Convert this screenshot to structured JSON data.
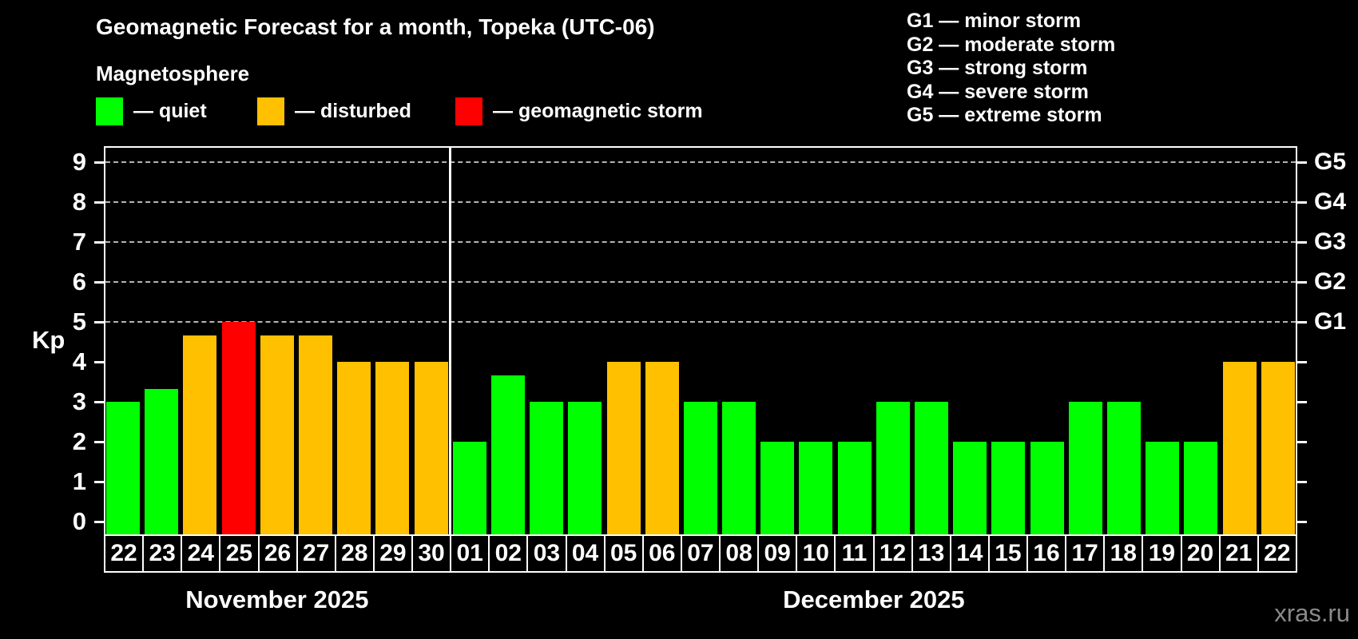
{
  "header": {
    "title": "Geomagnetic Forecast for a month, Topeka (UTC-06)",
    "subtitle": "Magnetosphere"
  },
  "legend": {
    "items": [
      {
        "name": "quiet",
        "color": "#00ff00",
        "label": "— quiet"
      },
      {
        "name": "disturbed",
        "color": "#ffc000",
        "label": "— disturbed"
      },
      {
        "name": "storm",
        "color": "#ff0000",
        "label": "— geomagnetic storm"
      }
    ]
  },
  "g_legend": {
    "items": [
      "G1 — minor storm",
      "G2 — moderate storm",
      "G3 — strong storm",
      "G4 — severe storm",
      "G5 — extreme storm"
    ]
  },
  "watermark": "xras.ru",
  "chart_data": {
    "type": "bar",
    "title": "Geomagnetic Forecast for a month, Topeka (UTC-06)",
    "ylabel": "Kp",
    "ylim": [
      0,
      9.4
    ],
    "y_ticks": [
      0,
      1,
      2,
      3,
      4,
      5,
      6,
      7,
      8,
      9
    ],
    "grid": "horizontal dashed lines at Kp 5 through 9",
    "gridlines_at_kp": [
      5,
      6,
      7,
      8,
      9
    ],
    "right_axis_labels": [
      {
        "code": "G1",
        "kp": 5
      },
      {
        "code": "G2",
        "kp": 6
      },
      {
        "code": "G3",
        "kp": 7
      },
      {
        "code": "G4",
        "kp": 8
      },
      {
        "code": "G5",
        "kp": 9
      }
    ],
    "state_colors": {
      "quiet": "#00ff00",
      "disturbed": "#ffc000",
      "storm": "#ff0000"
    },
    "months": [
      {
        "label": "November 2025",
        "days": 9
      },
      {
        "label": "December 2025",
        "days": 22
      }
    ],
    "series": [
      {
        "month": "November 2025",
        "day": "22",
        "kp": 3.0,
        "state": "quiet"
      },
      {
        "month": "November 2025",
        "day": "23",
        "kp": 3.33,
        "state": "quiet"
      },
      {
        "month": "November 2025",
        "day": "24",
        "kp": 4.67,
        "state": "disturbed"
      },
      {
        "month": "November 2025",
        "day": "25",
        "kp": 5.0,
        "state": "storm"
      },
      {
        "month": "November 2025",
        "day": "26",
        "kp": 4.67,
        "state": "disturbed"
      },
      {
        "month": "November 2025",
        "day": "27",
        "kp": 4.67,
        "state": "disturbed"
      },
      {
        "month": "November 2025",
        "day": "28",
        "kp": 4.0,
        "state": "disturbed"
      },
      {
        "month": "November 2025",
        "day": "29",
        "kp": 4.0,
        "state": "disturbed"
      },
      {
        "month": "November 2025",
        "day": "30",
        "kp": 4.0,
        "state": "disturbed"
      },
      {
        "month": "December 2025",
        "day": "01",
        "kp": 2.0,
        "state": "quiet"
      },
      {
        "month": "December 2025",
        "day": "02",
        "kp": 3.67,
        "state": "quiet"
      },
      {
        "month": "December 2025",
        "day": "03",
        "kp": 3.0,
        "state": "quiet"
      },
      {
        "month": "December 2025",
        "day": "04",
        "kp": 3.0,
        "state": "quiet"
      },
      {
        "month": "December 2025",
        "day": "05",
        "kp": 4.0,
        "state": "disturbed"
      },
      {
        "month": "December 2025",
        "day": "06",
        "kp": 4.0,
        "state": "disturbed"
      },
      {
        "month": "December 2025",
        "day": "07",
        "kp": 3.0,
        "state": "quiet"
      },
      {
        "month": "December 2025",
        "day": "08",
        "kp": 3.0,
        "state": "quiet"
      },
      {
        "month": "December 2025",
        "day": "09",
        "kp": 2.0,
        "state": "quiet"
      },
      {
        "month": "December 2025",
        "day": "10",
        "kp": 2.0,
        "state": "quiet"
      },
      {
        "month": "December 2025",
        "day": "11",
        "kp": 2.0,
        "state": "quiet"
      },
      {
        "month": "December 2025",
        "day": "12",
        "kp": 3.0,
        "state": "quiet"
      },
      {
        "month": "December 2025",
        "day": "13",
        "kp": 3.0,
        "state": "quiet"
      },
      {
        "month": "December 2025",
        "day": "14",
        "kp": 2.0,
        "state": "quiet"
      },
      {
        "month": "December 2025",
        "day": "15",
        "kp": 2.0,
        "state": "quiet"
      },
      {
        "month": "December 2025",
        "day": "16",
        "kp": 2.0,
        "state": "quiet"
      },
      {
        "month": "December 2025",
        "day": "17",
        "kp": 3.0,
        "state": "quiet"
      },
      {
        "month": "December 2025",
        "day": "18",
        "kp": 3.0,
        "state": "quiet"
      },
      {
        "month": "December 2025",
        "day": "19",
        "kp": 2.0,
        "state": "quiet"
      },
      {
        "month": "December 2025",
        "day": "20",
        "kp": 2.0,
        "state": "quiet"
      },
      {
        "month": "December 2025",
        "day": "21",
        "kp": 4.0,
        "state": "disturbed"
      },
      {
        "month": "December 2025",
        "day": "22",
        "kp": 4.0,
        "state": "disturbed"
      }
    ]
  }
}
